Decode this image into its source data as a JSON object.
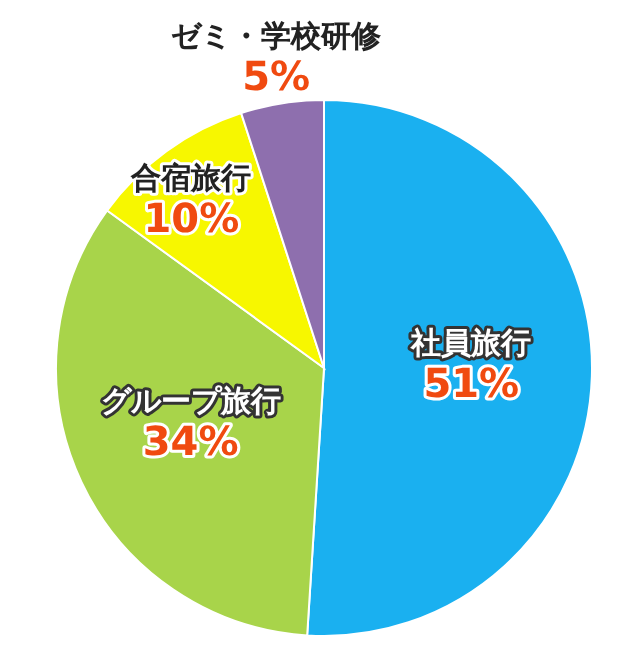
{
  "chart_data": {
    "type": "pie",
    "categories": [
      "社員旅行",
      "グループ旅行",
      "合宿旅行",
      "ゼミ・学校研修"
    ],
    "values": [
      51,
      34,
      10,
      5
    ],
    "colors": [
      "#1ab0f0",
      "#a8d44a",
      "#f7f700",
      "#8e6fae"
    ],
    "value_labels": [
      "51%",
      "34%",
      "10%",
      "5%"
    ],
    "legend": false
  }
}
